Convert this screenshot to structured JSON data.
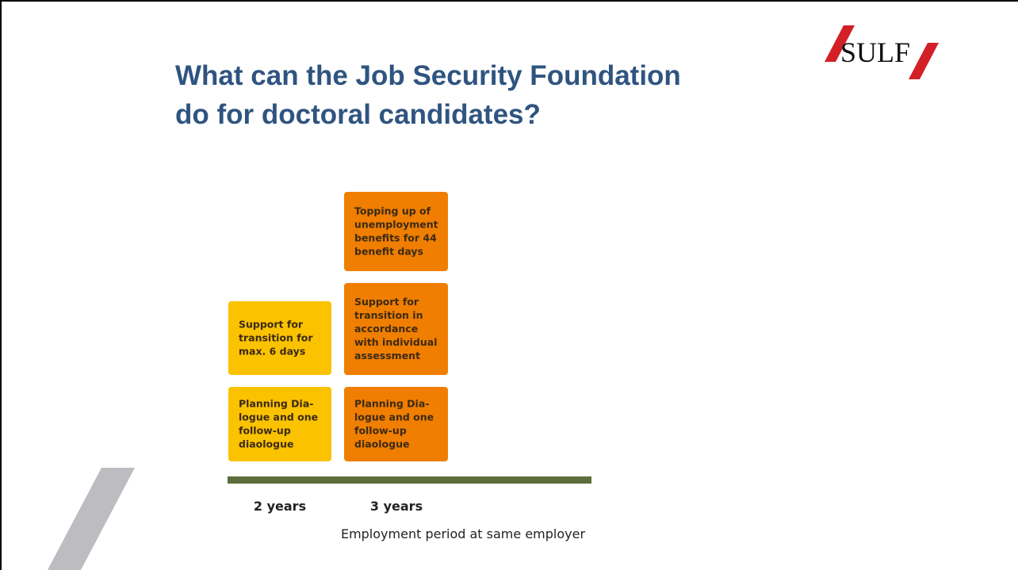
{
  "header": {
    "title_lines": [
      "What can the Job Security Foundation",
      "do for doctoral candidates?"
    ],
    "logo": "SULF"
  },
  "diagram": {
    "columns": [
      {
        "label": "2 years",
        "boxes": [
          {
            "color": "#fbc200",
            "lines": [
              "Support for",
              "transition for",
              "max. 6 days"
            ]
          },
          {
            "color": "#fbc200",
            "lines": [
              "Planning Dia-",
              "logue and one",
              "follow-up",
              "diaologue"
            ]
          }
        ]
      },
      {
        "label": "3 years",
        "boxes": [
          {
            "color": "#f07e00",
            "lines": [
              "Topping up of",
              "unemployment",
              "benefits for 44",
              "benefit days"
            ]
          },
          {
            "color": "#f07e00",
            "lines": [
              "Support for",
              "transition in",
              "accordance",
              "with individual",
              "assessment"
            ]
          },
          {
            "color": "#f07e00",
            "lines": [
              "Planning Dia-",
              "logue and one",
              "follow-up",
              "diaologue"
            ]
          }
        ]
      }
    ],
    "caption": "Employment period at same employer"
  }
}
